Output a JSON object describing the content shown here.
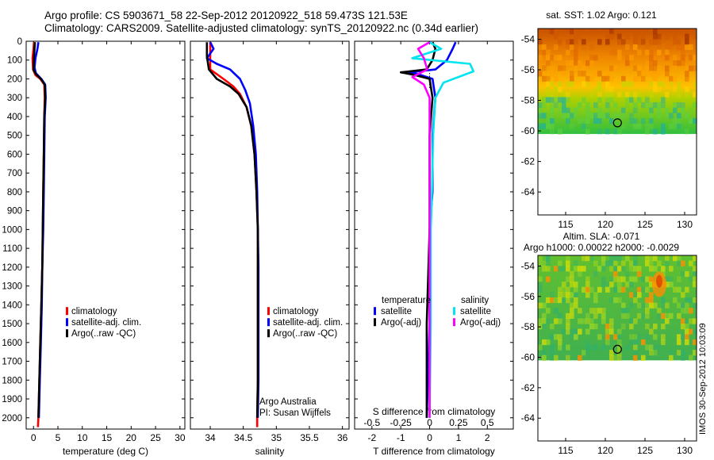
{
  "header": {
    "line1": "Argo profile: CS 5903671_58 22-Sep-2012 20120922_518 59.473S 121.53E",
    "line2": "Climatology: CARS2009. Satellite-adjusted climatology: synTS_20120922.nc (0.34d earlier)"
  },
  "stamp": "IMOS 30-Sep-2012 10:03:09",
  "colors": {
    "climatology": "#ff0000",
    "satellite": "#0000ff",
    "argo": "#000000",
    "salinity_satellite": "#00e5ee",
    "salinity_argo": "#ff00ff"
  },
  "chart_data": [
    {
      "id": "temperature",
      "type": "line",
      "xlabel": "temperature (deg C)",
      "ylabel": "",
      "xlim": [
        -1.5,
        31
      ],
      "ylim": [
        2060,
        0
      ],
      "xticks": [
        0,
        5,
        10,
        15,
        20,
        25,
        30
      ],
      "yticks": [
        0,
        100,
        200,
        300,
        400,
        500,
        600,
        700,
        800,
        900,
        1000,
        1100,
        1200,
        1300,
        1400,
        1500,
        1600,
        1700,
        1800,
        1900,
        2000
      ],
      "legend": {
        "position": "bottom-right",
        "entries": [
          "climatology",
          "satellite-adj. clim.",
          "Argo(..raw -QC)"
        ]
      },
      "series": [
        {
          "name": "climatology",
          "color": "#ff0000",
          "points": [
            [
              0.1,
              5
            ],
            [
              0.0,
              40
            ],
            [
              -0.2,
              90
            ],
            [
              -0.1,
              150
            ],
            [
              0.4,
              180
            ],
            [
              1.4,
              200
            ],
            [
              2.2,
              230
            ],
            [
              2.3,
              300
            ],
            [
              2.2,
              400
            ],
            [
              2.1,
              600
            ],
            [
              2.0,
              800
            ],
            [
              1.9,
              1000
            ],
            [
              1.8,
              1200
            ],
            [
              1.6,
              1400
            ],
            [
              1.4,
              1600
            ],
            [
              1.2,
              1800
            ],
            [
              1.0,
              2000
            ],
            [
              0.9,
              2050
            ]
          ]
        },
        {
          "name": "satellite-adj. clim.",
          "color": "#0000ff",
          "points": [
            [
              1.0,
              5
            ],
            [
              0.8,
              40
            ],
            [
              0.4,
              90
            ],
            [
              0.2,
              140
            ],
            [
              0.5,
              170
            ],
            [
              1.6,
              200
            ],
            [
              2.4,
              230
            ],
            [
              2.5,
              300
            ],
            [
              2.3,
              400
            ],
            [
              2.2,
              600
            ],
            [
              2.1,
              800
            ],
            [
              2.0,
              1000
            ],
            [
              1.8,
              1200
            ],
            [
              1.7,
              1400
            ],
            [
              1.5,
              1600
            ],
            [
              1.3,
              1800
            ],
            [
              1.1,
              2000
            ]
          ]
        },
        {
          "name": "Argo(..raw -QC)",
          "color": "#000000",
          "points": [
            [
              0.3,
              5
            ],
            [
              0.2,
              40
            ],
            [
              0.1,
              90
            ],
            [
              0.0,
              150
            ],
            [
              0.5,
              175
            ],
            [
              1.5,
              200
            ],
            [
              2.3,
              230
            ],
            [
              2.4,
              300
            ],
            [
              2.2,
              400
            ],
            [
              2.1,
              600
            ],
            [
              2.0,
              800
            ],
            [
              1.9,
              1000
            ],
            [
              1.8,
              1200
            ],
            [
              1.6,
              1400
            ],
            [
              1.4,
              1600
            ],
            [
              1.2,
              1800
            ],
            [
              1.0,
              2000
            ]
          ]
        }
      ]
    },
    {
      "id": "salinity",
      "type": "line",
      "xlabel": "salinity",
      "ylabel": "",
      "xlim": [
        33.7,
        36.1
      ],
      "ylim": [
        2060,
        0
      ],
      "xticks": [
        34,
        34.5,
        35,
        35.5,
        36
      ],
      "xticklabels": [
        "34",
        "34.5",
        "35",
        "35.5",
        "36"
      ],
      "legend": {
        "position": "bottom-right",
        "entries": [
          "climatology",
          "satellite-adj. clim.",
          "Argo(..raw -QC)"
        ]
      },
      "annotation": [
        "Argo Australia",
        "PI: Susan Wijffels"
      ],
      "series": [
        {
          "name": "climatology",
          "color": "#ff0000",
          "points": [
            [
              34.0,
              5
            ],
            [
              34.0,
              80
            ],
            [
              34.0,
              150
            ],
            [
              34.2,
              200
            ],
            [
              34.35,
              240
            ],
            [
              34.45,
              280
            ],
            [
              34.55,
              350
            ],
            [
              34.62,
              450
            ],
            [
              34.67,
              600
            ],
            [
              34.7,
              800
            ],
            [
              34.72,
              1000
            ],
            [
              34.72,
              1200
            ],
            [
              34.72,
              1500
            ],
            [
              34.72,
              1800
            ],
            [
              34.71,
              2000
            ],
            [
              34.71,
              2050
            ]
          ]
        },
        {
          "name": "satellite-adj. clim.",
          "color": "#0000ff",
          "points": [
            [
              34.0,
              5
            ],
            [
              34.05,
              40
            ],
            [
              33.95,
              90
            ],
            [
              34.1,
              120
            ],
            [
              34.3,
              150
            ],
            [
              34.45,
              200
            ],
            [
              34.53,
              260
            ],
            [
              34.6,
              330
            ],
            [
              34.65,
              450
            ],
            [
              34.69,
              600
            ],
            [
              34.71,
              800
            ],
            [
              34.72,
              1000
            ],
            [
              34.73,
              1200
            ],
            [
              34.73,
              1500
            ],
            [
              34.73,
              1800
            ],
            [
              34.72,
              2000
            ]
          ]
        },
        {
          "name": "Argo(..raw -QC)",
          "color": "#000000",
          "points": [
            [
              33.95,
              5
            ],
            [
              33.95,
              80
            ],
            [
              33.98,
              150
            ],
            [
              34.1,
              200
            ],
            [
              34.3,
              240
            ],
            [
              34.43,
              280
            ],
            [
              34.55,
              350
            ],
            [
              34.62,
              450
            ],
            [
              34.67,
              600
            ],
            [
              34.7,
              800
            ],
            [
              34.72,
              1000
            ],
            [
              34.72,
              1200
            ],
            [
              34.72,
              1500
            ],
            [
              34.72,
              1800
            ],
            [
              34.71,
              2000
            ]
          ]
        }
      ]
    },
    {
      "id": "difference",
      "type": "line",
      "xlabel": "T difference from climatology",
      "top_label": "S difference from climatology",
      "xlim": [
        -2.6,
        2.9
      ],
      "ylim": [
        2060,
        0
      ],
      "xticks": [
        -2,
        -1,
        0,
        1,
        2
      ],
      "sticks": [
        -0.5,
        -0.25,
        0,
        0.25,
        0.5
      ],
      "sticklabels": [
        "-0.5",
        "-0.25",
        "0",
        "0.25",
        "0.5"
      ],
      "legend": {
        "position": "bottom-right",
        "headers": [
          "temperature",
          "salinity"
        ],
        "entries": [
          "satellite",
          "Argo(-adj)",
          "satellite",
          "Argo(-adj)"
        ]
      },
      "series": [
        {
          "name": "temperature satellite",
          "color": "#0000ff",
          "points": [
            [
              0.9,
              5
            ],
            [
              0.8,
              40
            ],
            [
              0.6,
              100
            ],
            [
              0.2,
              150
            ],
            [
              -0.7,
              165
            ],
            [
              -0.4,
              175
            ],
            [
              0.1,
              200
            ],
            [
              0.2,
              300
            ],
            [
              0.1,
              500
            ],
            [
              0.1,
              800
            ],
            [
              0.0,
              1000
            ],
            [
              0.0,
              1500
            ],
            [
              -0.1,
              2000
            ]
          ]
        },
        {
          "name": "temperature Argo(-adj)",
          "color": "#000000",
          "points": [
            [
              0.1,
              5
            ],
            [
              0.2,
              40
            ],
            [
              0.1,
              100
            ],
            [
              -0.1,
              150
            ],
            [
              -1.0,
              165
            ],
            [
              -0.5,
              180
            ],
            [
              0.0,
              200
            ],
            [
              0.1,
              300
            ],
            [
              0.0,
              500
            ],
            [
              0.0,
              800
            ],
            [
              0.0,
              1000
            ],
            [
              -0.1,
              1500
            ],
            [
              -0.1,
              2000
            ]
          ]
        },
        {
          "name": "salinity satellite",
          "color": "#00e5ee",
          "points": [
            [
              0.0,
              5
            ],
            [
              0.1,
              40
            ],
            [
              -0.15,
              90
            ],
            [
              0.35,
              120
            ],
            [
              0.38,
              160
            ],
            [
              0.12,
              220
            ],
            [
              0.05,
              300
            ],
            [
              0.03,
              500
            ],
            [
              0.02,
              800
            ],
            [
              0.01,
              1000
            ],
            [
              0.01,
              1500
            ],
            [
              0.0,
              2000
            ]
          ]
        },
        {
          "name": "salinity Argo(-adj)",
          "color": "#ff00ff",
          "points": [
            [
              0.0,
              5
            ],
            [
              -0.1,
              40
            ],
            [
              -0.05,
              90
            ],
            [
              -0.02,
              150
            ],
            [
              -0.15,
              190
            ],
            [
              -0.05,
              230
            ],
            [
              0.0,
              300
            ],
            [
              0.0,
              500
            ],
            [
              0.0,
              800
            ],
            [
              0.0,
              1000
            ],
            [
              0.0,
              1500
            ],
            [
              0.0,
              2000
            ]
          ]
        }
      ]
    },
    {
      "id": "sst_map",
      "type": "heatmap",
      "title": "sat. SST: 1.02 Argo: 0.121",
      "xlim": [
        111.5,
        131.5
      ],
      "ylim": [
        -65.5,
        -53.3
      ],
      "xticks": [
        115,
        120,
        125,
        130
      ],
      "yticks": [
        -54,
        -56,
        -58,
        -60,
        -62,
        -64
      ],
      "data_ylim": [
        -60.2,
        -53.3
      ],
      "marker": {
        "lon": 121.53,
        "lat": -59.473
      }
    },
    {
      "id": "sla_map",
      "type": "heatmap",
      "title": "Altim. SLA: -0.071",
      "subtitle": "Argo h1000: 0.00022 h2000: -0.0029",
      "xlim": [
        111.5,
        131.5
      ],
      "ylim": [
        -65.5,
        -53.3
      ],
      "xticks": [
        115,
        120,
        125,
        130
      ],
      "yticks": [
        -54,
        -56,
        -58,
        -60,
        -62,
        -64
      ],
      "data_ylim": [
        -60.2,
        -53.3
      ],
      "marker": {
        "lon": 121.53,
        "lat": -59.473
      }
    }
  ]
}
